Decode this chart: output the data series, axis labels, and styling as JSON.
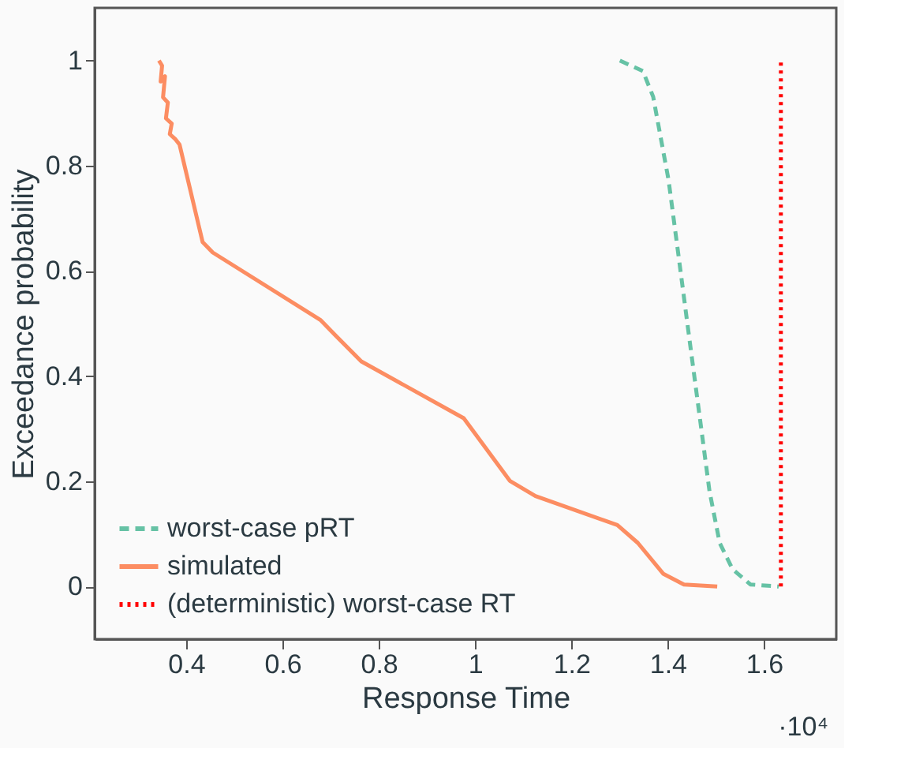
{
  "chart_data": {
    "type": "line",
    "xlabel": "Response Time",
    "ylabel": "Exceedance probability",
    "xlim": [
      0.21,
      1.75
    ],
    "ylim": [
      -0.1,
      1.1
    ],
    "xticks": [
      0.4,
      0.6,
      0.8,
      1,
      1.2,
      1.4,
      1.6
    ],
    "yticks": [
      0,
      0.2,
      0.4,
      0.6,
      0.8,
      1
    ],
    "grid": false,
    "legend": "bottom left",
    "marker": "none",
    "annotations": [
      "·10⁴"
    ],
    "series": [
      {
        "name": "worst-case pRT",
        "color": "#66c2a5",
        "line_style": "dashed",
        "x": [
          1.3006,
          1.3484,
          1.3698,
          1.4017,
          1.423,
          1.4441,
          1.4655,
          1.4868,
          1.5079,
          1.5347,
          1.5717,
          1.6304
        ],
        "values": [
          1.0,
          0.98,
          0.931,
          0.773,
          0.625,
          0.477,
          0.329,
          0.181,
          0.083,
          0.033,
          0.004,
          0
        ]
      },
      {
        "name": "simulated",
        "color": "#fc8d62",
        "line_style": "solid",
        "x": [
          0.3435,
          0.35,
          0.347,
          0.356,
          0.352,
          0.362,
          0.358,
          0.37,
          0.366,
          0.378,
          0.3863,
          0.4341,
          0.4552,
          0.6785,
          0.7104,
          0.7637,
          0.9764,
          1.0721,
          1.1253,
          1.2954,
          1.3379,
          1.3911,
          1.4336,
          1.5028
        ],
        "values": [
          1.0,
          0.99,
          0.96,
          0.97,
          0.93,
          0.92,
          0.89,
          0.88,
          0.86,
          0.85,
          0.84,
          0.655,
          0.635,
          0.507,
          0.477,
          0.428,
          0.32,
          0.201,
          0.172,
          0.117,
          0.083,
          0.024,
          0.004,
          0
        ]
      },
      {
        "name": "(deterministic) worst-case RT",
        "color": "#ff0000",
        "line_style": "dotted",
        "x": [
          1.635,
          1.635
        ],
        "values": [
          0,
          1
        ]
      }
    ]
  }
}
